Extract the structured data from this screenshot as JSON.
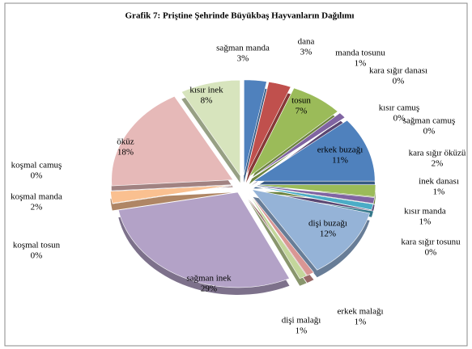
{
  "chart_data": {
    "type": "pie",
    "title": "Grafik 7: Priştine Şehrinde Büyükbaş Hayvanların Dağılımı",
    "categories": [
      "sağman manda",
      "dana",
      "tosun",
      "manda tosunu",
      "kara sığır danası",
      "kısır camuş",
      "sağman camuş",
      "erkek buzağı",
      "kara sığır öküzü",
      "inek danası",
      "kısır manda",
      "kara sığır tosunu",
      "dişi buzağı",
      "erkek malağı",
      "dişi malağı",
      "sağman inek",
      "koşmal tosun",
      "koşmal manda",
      "koşmal camuş",
      "öküz",
      "kısır inek"
    ],
    "values": [
      3,
      3,
      7,
      1,
      0,
      0,
      0,
      11,
      2,
      1,
      1,
      0,
      12,
      1,
      1,
      29,
      0,
      2,
      0,
      18,
      8
    ],
    "value_labels": [
      "3%",
      "3%",
      "7%",
      "1%",
      "0%",
      "0%",
      "0%",
      "11%",
      "2%",
      "1%",
      "1%",
      "0%",
      "12%",
      "1%",
      "1%",
      "29%",
      "0%",
      "2%",
      "0%",
      "18%",
      "8%"
    ],
    "colors": [
      "#4f81bd",
      "#c0504d",
      "#9bbb59",
      "#8064a2",
      "#4bacc6",
      "#f79646",
      "#2c4d75",
      "#4f81bd",
      "#9bbb59",
      "#8064a2",
      "#4bacc6",
      "#f79646",
      "#95b3d7",
      "#d99694",
      "#c3d69b",
      "#b3a2c7",
      "#93cddd",
      "#fac090",
      "#b9cde5",
      "#e6b9b8",
      "#d7e4bd"
    ]
  }
}
